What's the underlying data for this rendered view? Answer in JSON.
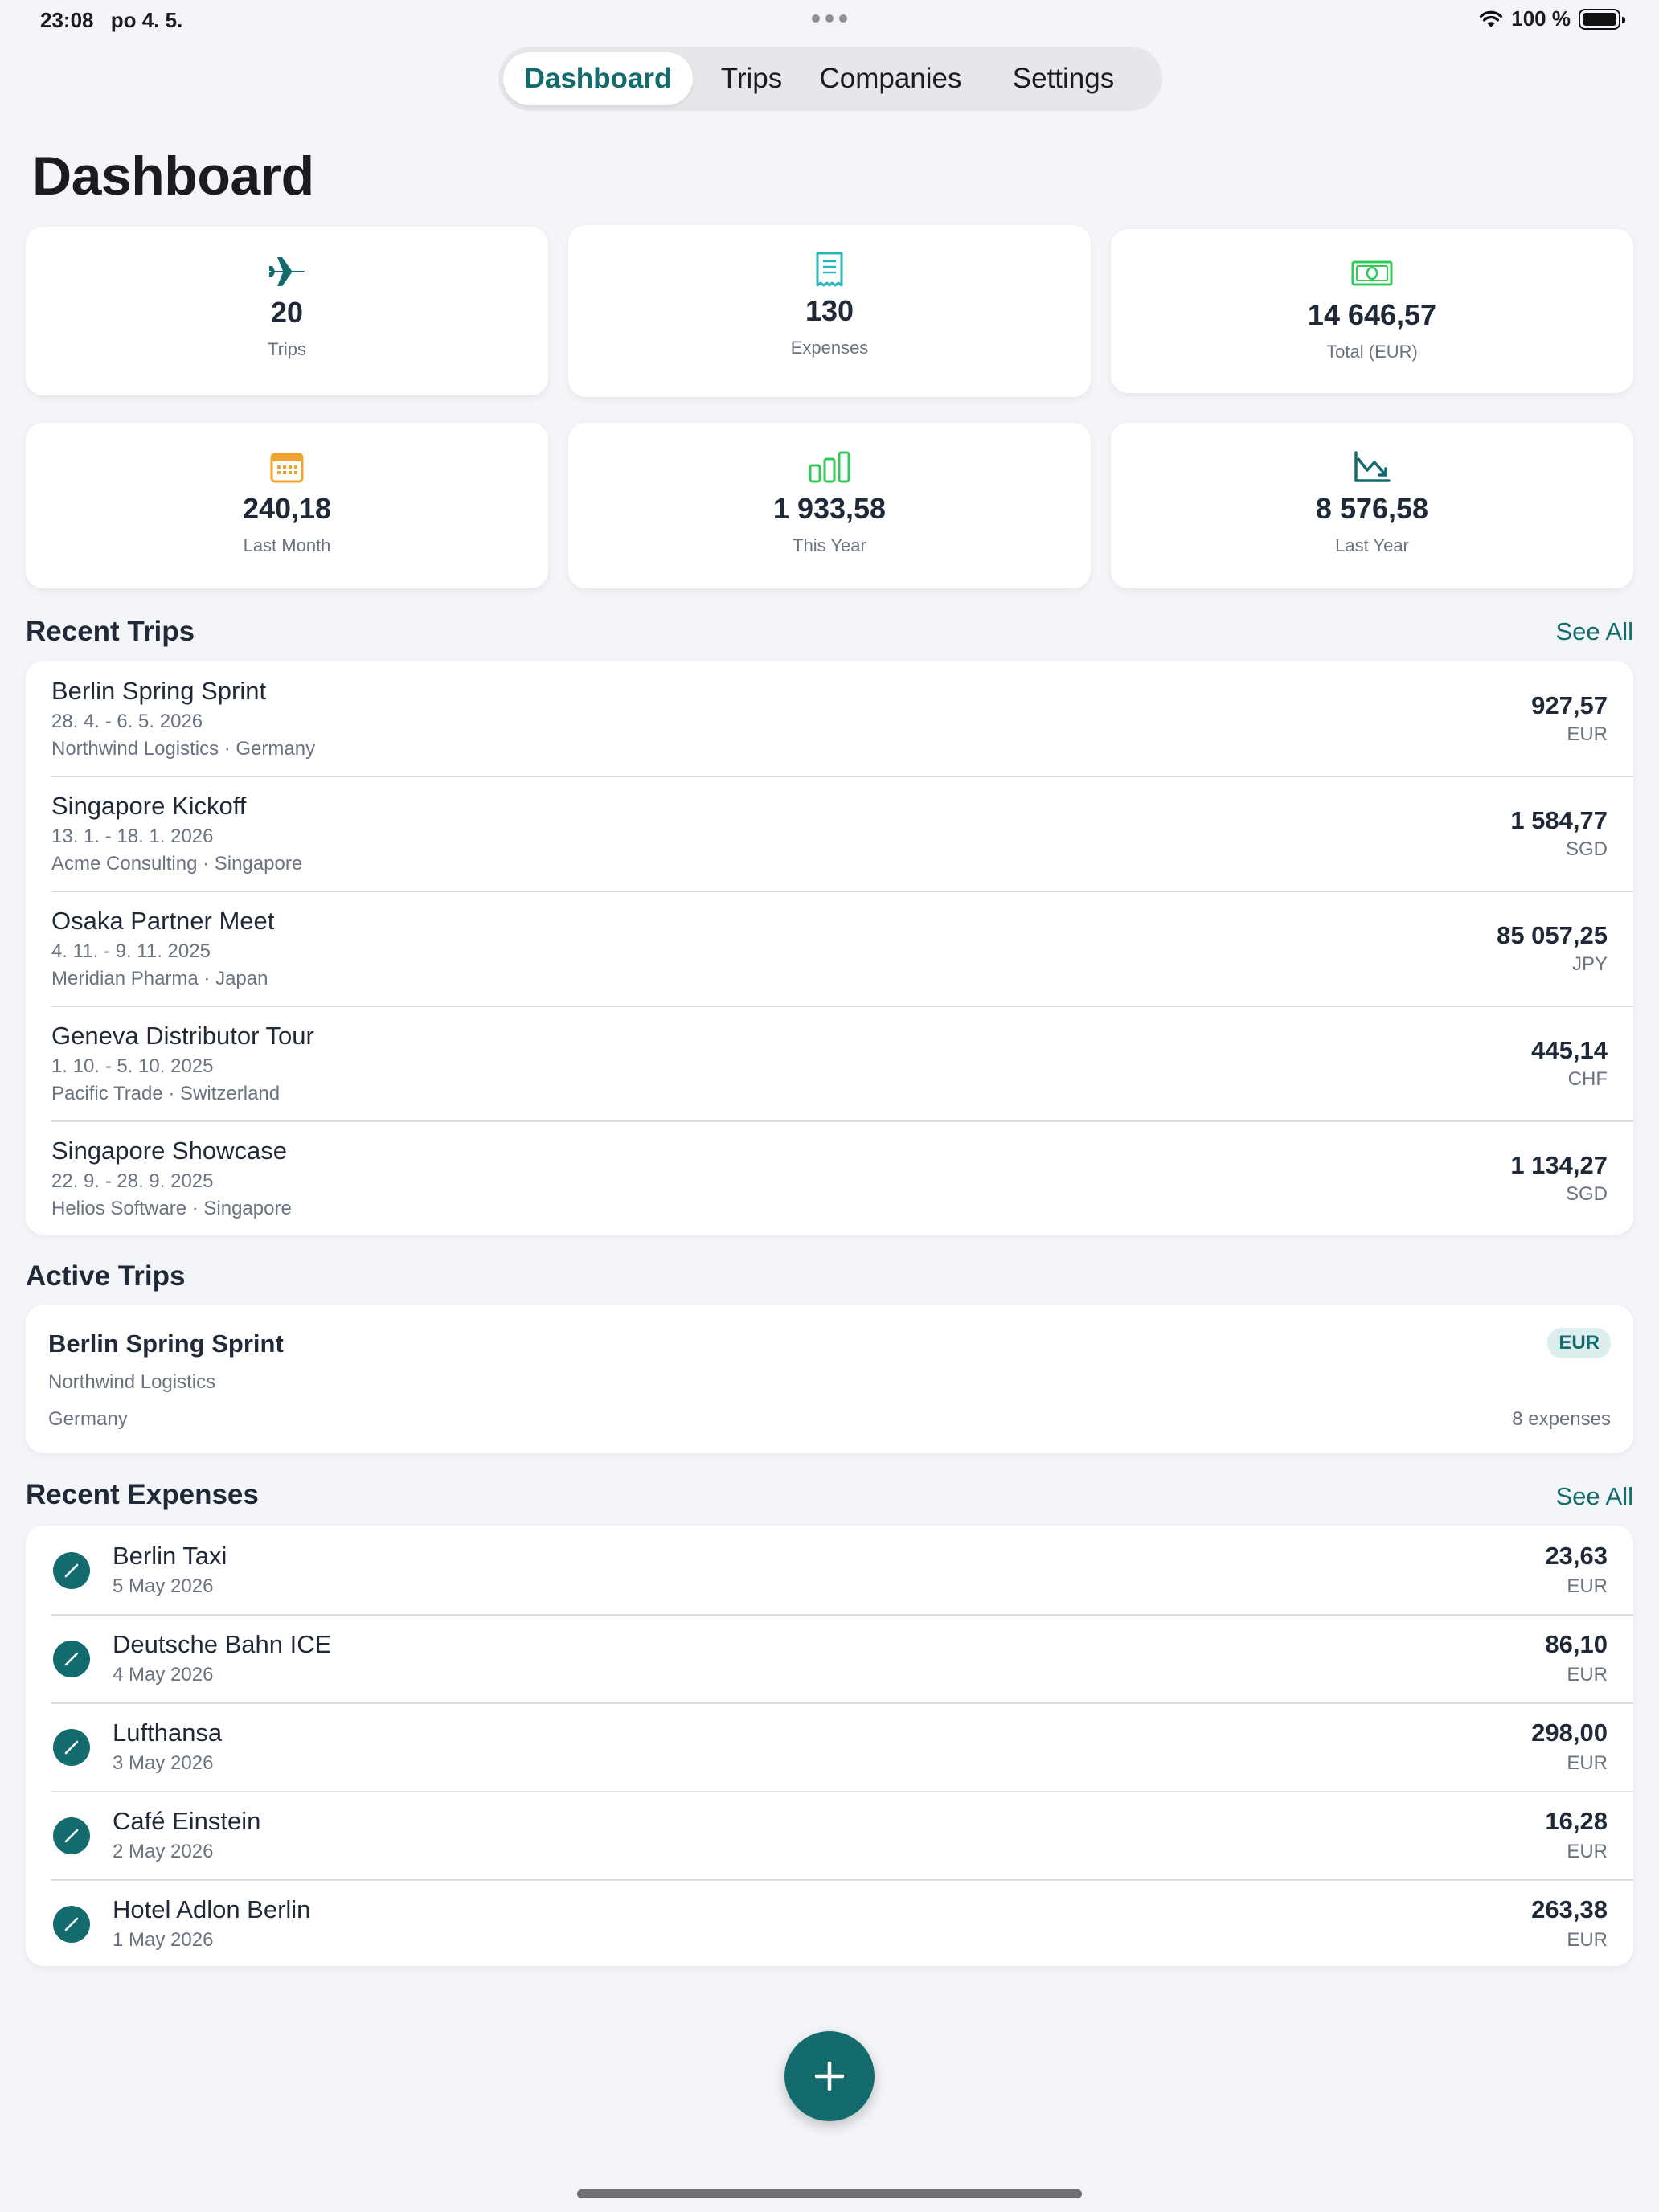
{
  "status_bar": {
    "time": "23:08",
    "date": "po 4. 5.",
    "battery": "100 %"
  },
  "tabs": [
    {
      "label": "Dashboard",
      "active": true
    },
    {
      "label": "Trips",
      "active": false
    },
    {
      "label": "Companies",
      "active": false
    },
    {
      "label": "Settings",
      "active": false
    }
  ],
  "page_title": "Dashboard",
  "stats": [
    {
      "icon": "airplane-icon",
      "value": "20",
      "label": "Trips",
      "color": "#136b6e"
    },
    {
      "icon": "receipt-icon",
      "value": "130",
      "label": "Expenses",
      "color": "#2bb5b9"
    },
    {
      "icon": "banknote-icon",
      "value": "14 646,57",
      "label": "Total (EUR)",
      "color": "#34c759"
    },
    {
      "icon": "calendar-icon",
      "value": "240,18",
      "label": "Last Month",
      "color": "#f0a330"
    },
    {
      "icon": "bar-chart-icon",
      "value": "1 933,58",
      "label": "This Year",
      "color": "#34c759"
    },
    {
      "icon": "trend-down-icon",
      "value": "8 576,58",
      "label": "Last Year",
      "color": "#136b6e"
    }
  ],
  "recent_trips": {
    "title": "Recent Trips",
    "see_all": "See All",
    "items": [
      {
        "name": "Berlin Spring Sprint",
        "dates": "28. 4. - 6. 5. 2026",
        "company_country": "Northwind Logistics · Germany",
        "amount": "927,57",
        "currency": "EUR"
      },
      {
        "name": "Singapore Kickoff",
        "dates": "13. 1. - 18. 1. 2026",
        "company_country": "Acme Consulting · Singapore",
        "amount": "1 584,77",
        "currency": "SGD"
      },
      {
        "name": "Osaka Partner Meet",
        "dates": "4. 11. - 9. 11. 2025",
        "company_country": "Meridian Pharma · Japan",
        "amount": "85 057,25",
        "currency": "JPY"
      },
      {
        "name": "Geneva Distributor Tour",
        "dates": "1. 10. - 5. 10. 2025",
        "company_country": "Pacific Trade · Switzerland",
        "amount": "445,14",
        "currency": "CHF"
      },
      {
        "name": "Singapore Showcase",
        "dates": "22. 9. - 28. 9. 2025",
        "company_country": "Helios Software · Singapore",
        "amount": "1 134,27",
        "currency": "SGD"
      }
    ]
  },
  "active_trips": {
    "title": "Active Trips",
    "items": [
      {
        "name": "Berlin Spring Sprint",
        "company": "Northwind Logistics",
        "country": "Germany",
        "currency": "EUR",
        "expenses": "8 expenses"
      }
    ]
  },
  "recent_expenses": {
    "title": "Recent Expenses",
    "see_all": "See All",
    "items": [
      {
        "name": "Berlin Taxi",
        "date": "5 May 2026",
        "amount": "23,63",
        "currency": "EUR"
      },
      {
        "name": "Deutsche Bahn ICE",
        "date": "4 May 2026",
        "amount": "86,10",
        "currency": "EUR"
      },
      {
        "name": "Lufthansa",
        "date": "3 May 2026",
        "amount": "298,00",
        "currency": "EUR"
      },
      {
        "name": "Café Einstein",
        "date": "2 May 2026",
        "amount": "16,28",
        "currency": "EUR"
      },
      {
        "name": "Hotel Adlon Berlin",
        "date": "1 May 2026",
        "amount": "263,38",
        "currency": "EUR"
      }
    ]
  },
  "colors": {
    "accent": "#136b6e",
    "background": "#f3f5f9"
  }
}
